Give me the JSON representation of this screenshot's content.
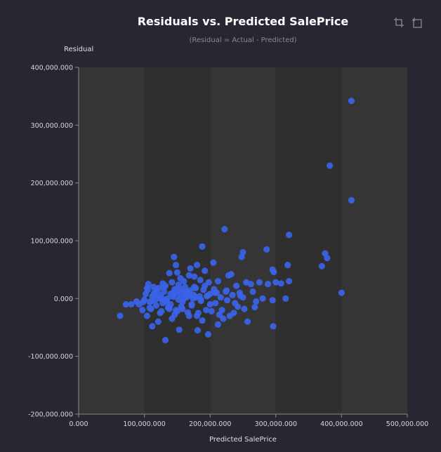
{
  "chart_data": {
    "type": "scatter",
    "title": "Residuals vs. Predicted SalePrice",
    "subtitle": "(Residual = Actual - Predicted)",
    "xlabel": "Predicted SalePrice",
    "ylabel": "Residual",
    "xlim": [
      0,
      500000000
    ],
    "ylim": [
      -200000000,
      400000000
    ],
    "x_ticks": [
      0,
      100000000,
      200000000,
      300000000,
      400000000,
      500000000
    ],
    "y_ticks": [
      -200000000,
      -100000000,
      0,
      100000000,
      200000000,
      300000000,
      400000000
    ],
    "x_tick_labels": [
      "0.000",
      "100,000.000",
      "200,000.000",
      "300,000.000",
      "400,000.000",
      "500,000.000"
    ],
    "y_tick_labels": [
      "-200,000.000",
      "-100,000.000",
      "0.000",
      "100,000.000",
      "200,000.000",
      "300,000.000",
      "400,000.000"
    ],
    "grid": "alternating vertical bands",
    "colors": {
      "point": "#3b63e8",
      "plot_bg_a": "#2f2f2f",
      "plot_bg_b": "#353535",
      "page_bg": "#272731"
    },
    "x": [
      415000000,
      382000000,
      415000000,
      222000000,
      320000000,
      188000000,
      250000000,
      375000000,
      378000000,
      286000000,
      145000000,
      370000000,
      248000000,
      205000000,
      180000000,
      295000000,
      297000000,
      318000000,
      168000000,
      232000000,
      148000000,
      192000000,
      170000000,
      150000000,
      138000000,
      130000000,
      155000000,
      160000000,
      176000000,
      185000000,
      198000000,
      212000000,
      228000000,
      240000000,
      255000000,
      262000000,
      275000000,
      288000000,
      300000000,
      308000000,
      320000000,
      400000000,
      315000000,
      295000000,
      296000000,
      257000000,
      236000000,
      230000000,
      212000000,
      220000000,
      197000000,
      181000000,
      188000000,
      168000000,
      153000000,
      142000000,
      132000000,
      121000000,
      112000000,
      104000000,
      97000000,
      88000000,
      80000000,
      72000000,
      63000000,
      105000000,
      115000000,
      125000000,
      135000000,
      145000000,
      165000000,
      175000000,
      195000000,
      210000000,
      225000000,
      245000000,
      265000000,
      280000000,
      110000000,
      118000000,
      128000000,
      138000000,
      148000000,
      158000000,
      172000000,
      182000000,
      202000000,
      218000000,
      238000000,
      252000000,
      270000000,
      106000000,
      114000000,
      122000000,
      132000000,
      142000000,
      152000000,
      162000000,
      178000000,
      190000000,
      206000000,
      224000000,
      246000000,
      100000000,
      108000000,
      116000000,
      124000000,
      134000000,
      144000000,
      154000000,
      164000000,
      174000000,
      186000000,
      196000000,
      208000000,
      226000000,
      102000000,
      112000000,
      120000000,
      130000000,
      140000000,
      150000000,
      160000000,
      170000000,
      184000000,
      200000000,
      216000000,
      234000000,
      250000000,
      268000000,
      92000000,
      98000000,
      110000000,
      126000000,
      136000000,
      146000000,
      156000000,
      166000000,
      180000000,
      194000000,
      214000000,
      242000000,
      104000000,
      118000000,
      128000000,
      146000000,
      162000000,
      176000000,
      192000000,
      208000000,
      122000000,
      134000000,
      152000000,
      166000000,
      186000000,
      108000000,
      140000000,
      158000000,
      172000000,
      200000000,
      130000000,
      144000000,
      156000000,
      170000000,
      114000000,
      160000000,
      138000000,
      150000000,
      124000000,
      178000000
    ],
    "y": [
      342000000,
      230000000,
      170000000,
      120000000,
      110000000,
      90000000,
      80000000,
      78000000,
      70000000,
      85000000,
      72000000,
      56000000,
      72000000,
      62000000,
      58000000,
      50000000,
      46000000,
      58000000,
      40000000,
      42000000,
      58000000,
      48000000,
      52000000,
      45000000,
      44000000,
      20000000,
      35000000,
      30000000,
      38000000,
      32000000,
      28000000,
      30000000,
      40000000,
      22000000,
      28000000,
      25000000,
      28000000,
      25000000,
      28000000,
      26000000,
      30000000,
      10000000,
      0,
      -3000000,
      -48000000,
      -40000000,
      -25000000,
      -30000000,
      -45000000,
      -35000000,
      -62000000,
      -55000000,
      -38000000,
      -30000000,
      -54000000,
      -35000000,
      -72000000,
      -40000000,
      -48000000,
      -30000000,
      -20000000,
      -5000000,
      -10000000,
      -10000000,
      -30000000,
      15000000,
      10000000,
      5000000,
      0,
      8000000,
      12000000,
      6000000,
      4000000,
      10000000,
      14000000,
      10000000,
      12000000,
      0,
      -5000000,
      -12000000,
      -8000000,
      -15000000,
      -20000000,
      -18000000,
      -10000000,
      -25000000,
      -22000000,
      -20000000,
      -8000000,
      -18000000,
      -5000000,
      25000000,
      20000000,
      18000000,
      22000000,
      28000000,
      24000000,
      20000000,
      18000000,
      15000000,
      16000000,
      12000000,
      5000000,
      -2000000,
      -6000000,
      -3000000,
      0,
      -4000000,
      3000000,
      6000000,
      2000000,
      0,
      -2000000,
      5000000,
      -8000000,
      -3000000,
      8000000,
      4000000,
      10000000,
      12000000,
      8000000,
      14000000,
      10000000,
      6000000,
      4000000,
      8000000,
      2000000,
      6000000,
      2000000,
      -15000000,
      -10000000,
      -6000000,
      -18000000,
      -22000000,
      -16000000,
      -28000000,
      -14000000,
      -24000000,
      -30000000,
      -20000000,
      -28000000,
      -14000000,
      18000000,
      15000000,
      26000000,
      16000000,
      12000000,
      20000000,
      22000000,
      10000000,
      2000000,
      -6000000,
      -2000000,
      4000000,
      -4000000,
      -16000000,
      -10000000,
      -6000000,
      -12000000,
      -10000000,
      -2000000,
      10000000,
      16000000,
      14000000,
      6000000,
      0,
      -18000000,
      -22000000,
      -25000000,
      2000000
    ]
  }
}
